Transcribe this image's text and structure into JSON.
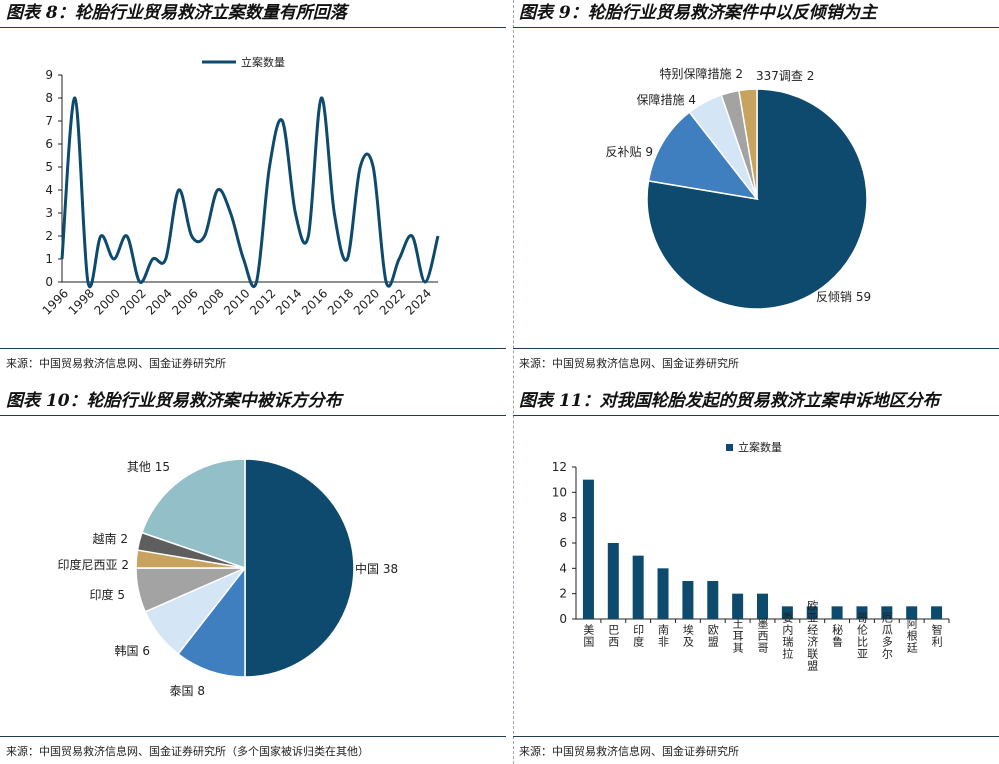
{
  "panels": {
    "p8": {
      "title": "图表 8：轮胎行业贸易救济立案数量有所回落",
      "source": "来源：中国贸易救济信息网、国金证券研究所"
    },
    "p9": {
      "title": "图表 9：轮胎行业贸易救济案件中以反倾销为主",
      "source": "来源：中国贸易救济信息网、国金证券研究所"
    },
    "p10": {
      "title": "图表 10：轮胎行业贸易救济案中被诉方分布",
      "source": "来源：中国贸易救济信息网、国金证券研究所（多个国家被诉归类在其他）"
    },
    "p11": {
      "title": "图表 11：对我国轮胎发起的贸易救济立案申诉地区分布",
      "source": "来源：中国贸易救济信息网、国金证券研究所"
    }
  },
  "colors": {
    "navy": "#0d4a6e",
    "blue": "#3f7fc0",
    "lightblue": "#d4e6f5",
    "gray": "#a3a3a3",
    "gold": "#c8a25f",
    "teal": "#93c0c8",
    "darkgray": "#5e5e5e"
  },
  "chart_data": [
    {
      "id": "chart8",
      "type": "line",
      "title": "轮胎行业贸易救济立案数量有所回落",
      "legend": "立案数量",
      "x": [
        1996,
        1997,
        1998,
        1999,
        2000,
        2001,
        2002,
        2003,
        2004,
        2005,
        2006,
        2007,
        2008,
        2009,
        2010,
        2011,
        2012,
        2013,
        2014,
        2015,
        2016,
        2017,
        2018,
        2019,
        2020,
        2021,
        2022,
        2023,
        2024,
        2025
      ],
      "values": [
        1,
        8,
        0,
        2,
        1,
        2,
        0,
        1,
        1,
        4,
        2,
        2,
        4,
        3,
        1,
        0,
        5,
        7,
        3,
        2,
        8,
        3,
        1,
        5,
        5,
        0,
        1,
        2,
        0,
        2
      ],
      "xticks": [
        "1996",
        "1998",
        "2000",
        "2002",
        "2004",
        "2006",
        "2008",
        "2010",
        "2012",
        "2014",
        "2016",
        "2018",
        "2020",
        "2022",
        "2024"
      ],
      "yticks": [
        "0",
        "1",
        "2",
        "3",
        "4",
        "5",
        "6",
        "7",
        "8",
        "9"
      ],
      "ylim": [
        0,
        9
      ]
    },
    {
      "id": "chart9",
      "type": "pie",
      "title": "轮胎行业贸易救济案件中以反倾销为主",
      "slices": [
        {
          "label": "反倾销",
          "value": 59,
          "text": "反倾销 59",
          "color": "#0d4a6e"
        },
        {
          "label": "反补贴",
          "value": 9,
          "text": "反补贴 9",
          "color": "#3f7fc0"
        },
        {
          "label": "保障措施",
          "value": 4,
          "text": "保障措施 4",
          "color": "#d4e6f5"
        },
        {
          "label": "特别保障措施",
          "value": 2,
          "text": "特别保障措施 2",
          "color": "#a3a3a3"
        },
        {
          "label": "337调查",
          "value": 2,
          "text": "337调查 2",
          "color": "#c8a25f"
        }
      ]
    },
    {
      "id": "chart10",
      "type": "pie",
      "title": "轮胎行业贸易救济案中被诉方分布",
      "slices": [
        {
          "label": "中国",
          "value": 38,
          "text": "中国 38",
          "color": "#0d4a6e"
        },
        {
          "label": "泰国",
          "value": 8,
          "text": "泰国 8",
          "color": "#3f7fc0"
        },
        {
          "label": "韩国",
          "value": 6,
          "text": "韩国 6",
          "color": "#d4e6f5"
        },
        {
          "label": "印度",
          "value": 5,
          "text": "印度 5",
          "color": "#a3a3a3"
        },
        {
          "label": "印度尼西亚",
          "value": 2,
          "text": "印度尼西亚 2",
          "color": "#c8a25f"
        },
        {
          "label": "越南",
          "value": 2,
          "text": "越南 2",
          "color": "#5e5e5e"
        },
        {
          "label": "其他",
          "value": 15,
          "text": "其他 15",
          "color": "#93c0c8"
        }
      ]
    },
    {
      "id": "chart11",
      "type": "bar",
      "title": "对我国轮胎发起的贸易救济立案申诉地区分布",
      "legend": "立案数量",
      "categories": [
        "美国",
        "巴西",
        "印度",
        "南非",
        "埃及",
        "欧盟",
        "土耳其",
        "墨西哥",
        "委内瑞拉",
        "欧亚经济联盟",
        "秘鲁",
        "哥伦比亚",
        "厄瓜多尔",
        "阿根廷",
        "智利"
      ],
      "values": [
        11,
        6,
        5,
        4,
        3,
        3,
        2,
        2,
        1,
        1,
        1,
        1,
        1,
        1,
        1
      ],
      "yticks": [
        "0",
        "2",
        "4",
        "6",
        "8",
        "10",
        "12"
      ],
      "ylim": [
        0,
        12
      ]
    }
  ]
}
